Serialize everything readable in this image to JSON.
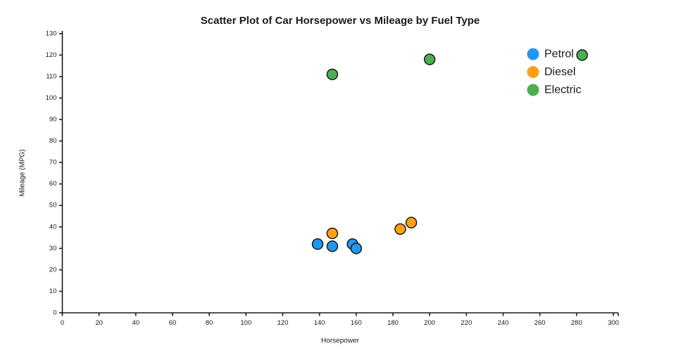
{
  "chart_data": {
    "type": "scatter",
    "title": "Scatter Plot of Car Horsepower vs Mileage by Fuel Type",
    "xlabel": "Horsepower",
    "ylabel": "Mileage (MPG)",
    "xlim": [
      0,
      300
    ],
    "ylim": [
      0,
      130
    ],
    "x_ticks": [
      0,
      20,
      40,
      60,
      80,
      100,
      120,
      140,
      160,
      180,
      200,
      220,
      240,
      260,
      280,
      300
    ],
    "y_ticks": [
      0,
      10,
      20,
      30,
      40,
      50,
      60,
      70,
      80,
      90,
      100,
      110,
      120,
      130
    ],
    "grid": false,
    "legend_position": "top-right",
    "legend_entries": [
      "Petrol",
      "Diesel",
      "Electric"
    ],
    "marker_edge_color": "#1a1a1a",
    "background_color": "#ffffff",
    "series": [
      {
        "name": "Petrol",
        "color": "#2196F3",
        "points": [
          [
            139,
            32
          ],
          [
            147,
            31
          ],
          [
            158,
            32
          ],
          [
            160,
            30
          ]
        ]
      },
      {
        "name": "Diesel",
        "color": "#FFA113",
        "points": [
          [
            147,
            37
          ],
          [
            184,
            39
          ],
          [
            190,
            42
          ]
        ]
      },
      {
        "name": "Electric",
        "color": "#4CAF50",
        "points": [
          [
            147,
            111
          ],
          [
            200,
            118
          ],
          [
            283,
            120
          ]
        ]
      }
    ]
  }
}
